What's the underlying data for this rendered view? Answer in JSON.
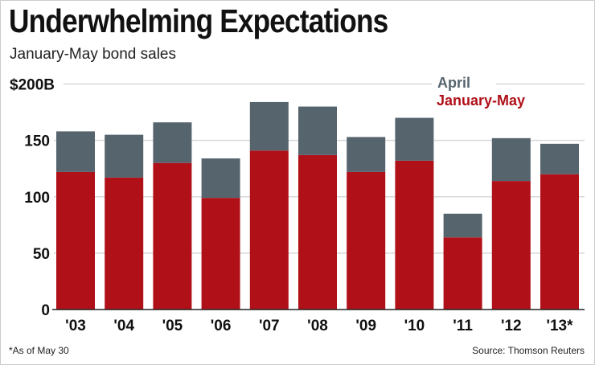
{
  "chart_data": {
    "type": "bar",
    "stacked": true,
    "title": "Underwhelming Expectations",
    "subtitle": "January-May bond sales",
    "xlabel": "",
    "ylabel": "",
    "ylim": [
      0,
      200
    ],
    "yticks": [
      {
        "value": 0,
        "label": "0"
      },
      {
        "value": 50,
        "label": "50"
      },
      {
        "value": 100,
        "label": "100"
      },
      {
        "value": 150,
        "label": "150"
      },
      {
        "value": 200,
        "label": "$200B"
      }
    ],
    "grid": true,
    "legend_position": "top-right",
    "categories": [
      "'03",
      "'04",
      "'05",
      "'06",
      "'07",
      "'08",
      "'09",
      "'10",
      "'11",
      "'12",
      "'13*"
    ],
    "series": [
      {
        "name": "January-May",
        "color": "#b01018",
        "values": [
          122,
          117,
          130,
          99,
          141,
          137,
          122,
          132,
          64,
          114,
          120
        ]
      },
      {
        "name": "April",
        "color": "#56646e",
        "values": [
          36,
          38,
          36,
          35,
          43,
          43,
          31,
          38,
          21,
          38,
          27
        ]
      }
    ],
    "totals": [
      158,
      155,
      166,
      134,
      184,
      180,
      153,
      170,
      85,
      152,
      147
    ],
    "footnote": "*As of May 30",
    "source": "Source: Thomson Reuters"
  }
}
